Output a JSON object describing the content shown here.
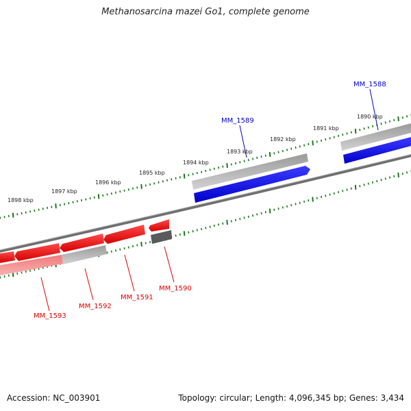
{
  "title": "Methanosarcina mazei Go1, complete genome",
  "accession_text": "Accession: NC_003901",
  "summary_text": "Topology: circular; Length: 4,096,345 bp; Genes: 3,434",
  "ticks": [
    {
      "label": "1890 kbp"
    },
    {
      "label": "1891 kbp"
    },
    {
      "label": "1892 kbp"
    },
    {
      "label": "1893 kbp"
    },
    {
      "label": "1894 kbp"
    },
    {
      "label": "1895 kbp"
    },
    {
      "label": "1896 kbp"
    },
    {
      "label": "1897 kbp"
    },
    {
      "label": "1898 kbp"
    }
  ],
  "gene_labels": [
    {
      "label": "MM_1588",
      "strand": "forward"
    },
    {
      "label": "MM_1589",
      "strand": "forward"
    },
    {
      "label": "MM_1590",
      "strand": "reverse"
    },
    {
      "label": "MM_1591",
      "strand": "reverse"
    },
    {
      "label": "MM_1592",
      "strand": "reverse"
    },
    {
      "label": "MM_1593",
      "strand": "reverse"
    }
  ],
  "colors": {
    "forward": "#0000ee",
    "reverse": "#ee0000",
    "reverse_light": "#f28a8a",
    "tick": "#1a7a1a",
    "backbone": "#777777",
    "feature_gray": "#aaaaaa",
    "feature_dark": "#555555"
  }
}
